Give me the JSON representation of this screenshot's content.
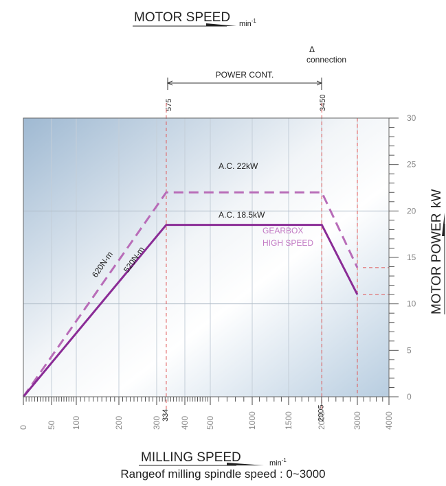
{
  "chart_data": {
    "type": "line",
    "title": "MOTOR SPEED",
    "title_unit": "min",
    "title_unit_sup": "-1",
    "xlabel": "MILLING SPEED",
    "xlabel_unit": "min",
    "xlabel_unit_sup": "-1",
    "ylabel": "MOTOR POWER",
    "ylabel_unit": "kW",
    "subtitle": "Rangeof milling spindle speed : 0~3000",
    "x_scale": "log",
    "xlim": [
      0,
      4000
    ],
    "ylim": [
      0,
      30
    ],
    "x_ticks": [
      "0",
      "50",
      "100",
      "200",
      "300",
      "400",
      "500",
      "1000",
      "1500",
      "2000",
      "3000",
      "4000"
    ],
    "x_tick_values": [
      0,
      50,
      100,
      200,
      300,
      400,
      500,
      1000,
      1500,
      2000,
      3000,
      4000
    ],
    "y_ticks": [
      "0",
      "5",
      "10",
      "15",
      "20",
      "25",
      "30"
    ],
    "y_tick_values": [
      0,
      5,
      10,
      15,
      20,
      25,
      30
    ],
    "grid": true,
    "series": [
      {
        "line_style": "dashed",
        "color": "#b86cb8",
        "points": [
          [
            0,
            0
          ],
          [
            334,
            22
          ],
          [
            2005,
            22
          ],
          [
            3000,
            13.9
          ]
        ]
      },
      {
        "line_style": "solid",
        "color": "#8a2c96",
        "points": [
          [
            0,
            0
          ],
          [
            334,
            18.5
          ],
          [
            2005,
            18.5
          ],
          [
            3000,
            11
          ]
        ]
      }
    ],
    "reference_lines": [
      {
        "x": 334,
        "label": "334",
        "motor_speed_label": "575"
      },
      {
        "x": 2005,
        "label": "2005",
        "motor_speed_label": "3450"
      },
      {
        "x": 3000,
        "label": ""
      }
    ],
    "annotations": {
      "power_const": "POWER CONT.",
      "delta_symbol": "Δ",
      "connection": "connection",
      "ac22": "A.C. 22kW",
      "ac185": "A.C. 18.5kW",
      "gearbox_line1": "GEARBOX",
      "gearbox_line2": "HIGH SPEED",
      "torque620": "620N-m",
      "torque520": "520N-m"
    },
    "colors": {
      "solid_line": "#8a2c96",
      "dashed_line": "#b86cb8",
      "gearbox_text": "#c27ac4",
      "reference_line": "#e05555"
    }
  }
}
